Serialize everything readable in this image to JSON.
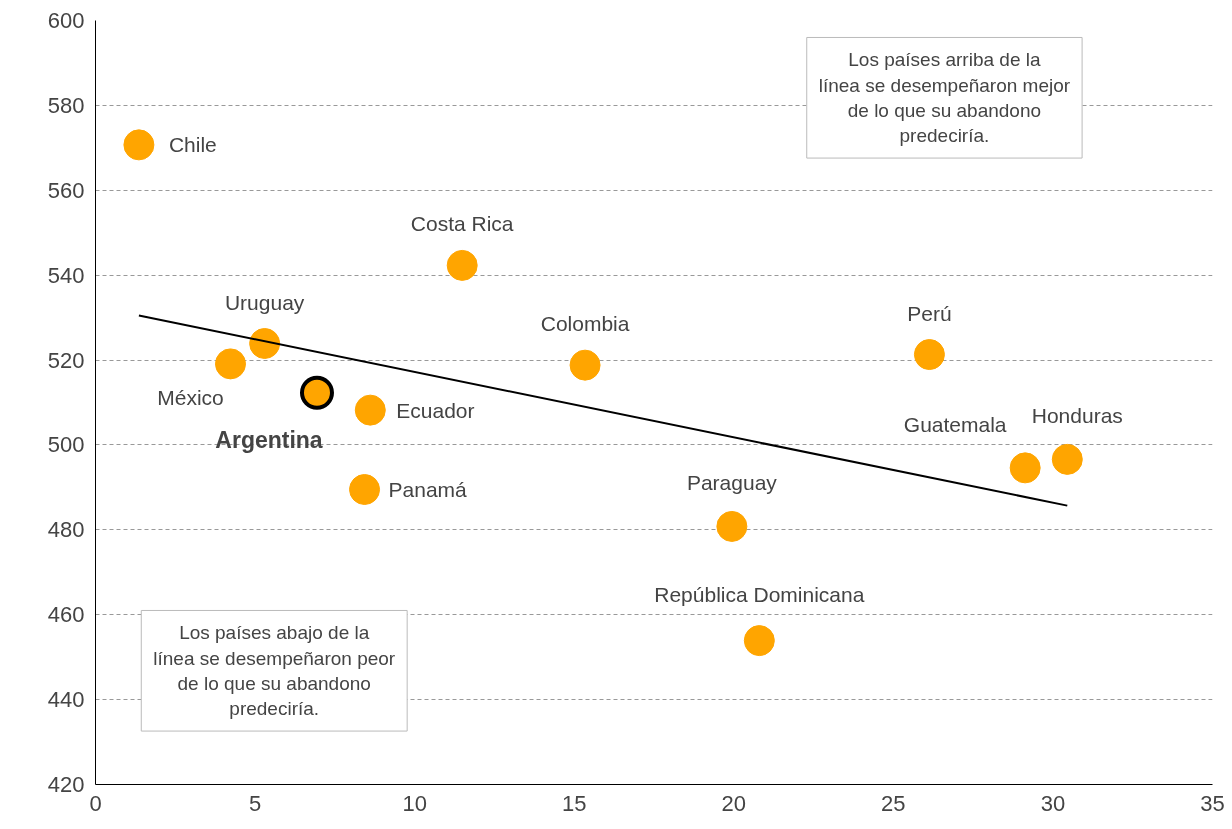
{
  "chart_data": {
    "type": "scatter",
    "xlim": [
      0,
      35
    ],
    "ylim": [
      420,
      600
    ],
    "xticks": [
      0,
      5,
      10,
      15,
      20,
      25,
      30,
      35
    ],
    "yticks": [
      420,
      440,
      460,
      480,
      500,
      520,
      540,
      560,
      580,
      600
    ],
    "grid": "y",
    "series": [
      {
        "marker": "circle",
        "color": "#ffa500",
        "x": [
          1.36,
          11.49,
          5.3,
          4.23,
          8.61,
          8.43,
          15.34,
          26.13,
          29.13,
          30.45,
          19.94,
          20.8
        ],
        "values": [
          570.7,
          542.3,
          523.9,
          519.1,
          508.2,
          489.5,
          518.8,
          521.3,
          494.6,
          496.6,
          480.8,
          453.9
        ]
      },
      {
        "marker": "circle",
        "color": "#ffa500",
        "x": [
          6.94
        ],
        "values": [
          512.3
        ]
      },
      {
        "type": "line",
        "marker": "none",
        "color": "#000000",
        "x": [
          1.36,
          30.45
        ],
        "values": [
          530.5,
          485.7
        ]
      }
    ],
    "annotations": [
      {
        "text": "Chile",
        "x": 1.36,
        "y": 570.7
      },
      {
        "text": "Costa Rica",
        "x": 11.49,
        "y": 542.3
      },
      {
        "text": "Uruguay",
        "x": 5.3,
        "y": 523.9
      },
      {
        "text": "México",
        "x": 4.23,
        "y": 519.1
      },
      {
        "text": "Ecuador",
        "x": 8.61,
        "y": 508.2
      },
      {
        "text": "Panamá",
        "x": 8.43,
        "y": 489.5
      },
      {
        "text": "Colombia",
        "x": 15.34,
        "y": 518.8
      },
      {
        "text": "Perú",
        "x": 26.13,
        "y": 521.3
      },
      {
        "text": "Guatemala",
        "x": 29.13,
        "y": 494.6
      },
      {
        "text": "Honduras",
        "x": 30.45,
        "y": 496.6
      },
      {
        "text": "Paraguay",
        "x": 19.94,
        "y": 480.8
      },
      {
        "text": "República Dominicana",
        "x": 20.8,
        "y": 453.9
      },
      {
        "text": "Argentina",
        "x": 6.94,
        "y": 512.3
      },
      "Los países arriba de la línea se desempeñaron mejor de lo que su abandono predeciría.",
      "Los países abajo de la línea se desempeñaron peor de lo que su abandono predeciría."
    ]
  }
}
